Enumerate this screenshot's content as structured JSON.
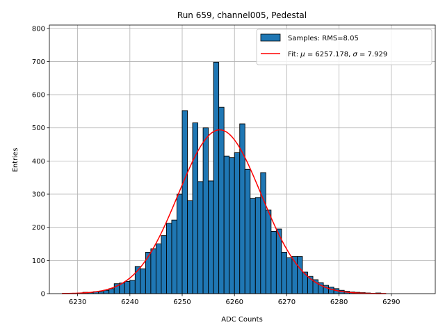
{
  "chart_data": {
    "type": "bar",
    "title": "Run 659, channel005, Pedestal",
    "xlabel": "ADC Counts",
    "ylabel": "Entries",
    "xlim": [
      6224.6,
      6298.4
    ],
    "ylim": [
      0,
      810
    ],
    "xticks": [
      6230,
      6240,
      6250,
      6260,
      6270,
      6280,
      6290
    ],
    "yticks": [
      0,
      100,
      200,
      300,
      400,
      500,
      600,
      700,
      800
    ],
    "grid": true,
    "legend_position": "top-right",
    "series": [
      {
        "name": "Samples: RMS=8.05",
        "kind": "histogram",
        "color": "#1f77b4",
        "edgecolor": "#000000",
        "bin_width": 1,
        "bin_starts": [
          6227,
          6228,
          6229,
          6230,
          6231,
          6232,
          6233,
          6234,
          6235,
          6236,
          6237,
          6238,
          6239,
          6240,
          6241,
          6242,
          6243,
          6244,
          6245,
          6246,
          6247,
          6248,
          6249,
          6250,
          6251,
          6252,
          6253,
          6254,
          6255,
          6256,
          6257,
          6258,
          6259,
          6260,
          6261,
          6262,
          6263,
          6264,
          6265,
          6266,
          6267,
          6268,
          6269,
          6270,
          6271,
          6272,
          6273,
          6274,
          6275,
          6276,
          6277,
          6278,
          6279,
          6280,
          6281,
          6282,
          6283,
          6284,
          6285,
          6286,
          6287,
          6288
        ],
        "values": [
          0,
          0,
          1,
          2,
          4,
          3,
          6,
          6,
          10,
          15,
          30,
          32,
          37,
          40,
          82,
          75,
          125,
          135,
          150,
          175,
          212,
          222,
          300,
          552,
          280,
          515,
          338,
          500,
          340,
          698,
          562,
          415,
          410,
          425,
          512,
          375,
          287,
          290,
          365,
          252,
          188,
          195,
          125,
          108,
          112,
          112,
          65,
          52,
          42,
          33,
          25,
          20,
          15,
          10,
          7,
          5,
          4,
          3,
          2,
          1,
          2,
          0
        ]
      },
      {
        "name": "Fit: μ = 6257.178, σ = 7.929",
        "legend_parts": [
          "Fit: ",
          "μ",
          " = 6257.178, ",
          "σ",
          " = 7.929"
        ],
        "kind": "line",
        "color": "#ff0000",
        "fit": {
          "mu": 6257.178,
          "sigma": 7.929,
          "amplitude": 494,
          "x_range": [
            6227,
            6289
          ]
        }
      }
    ]
  }
}
